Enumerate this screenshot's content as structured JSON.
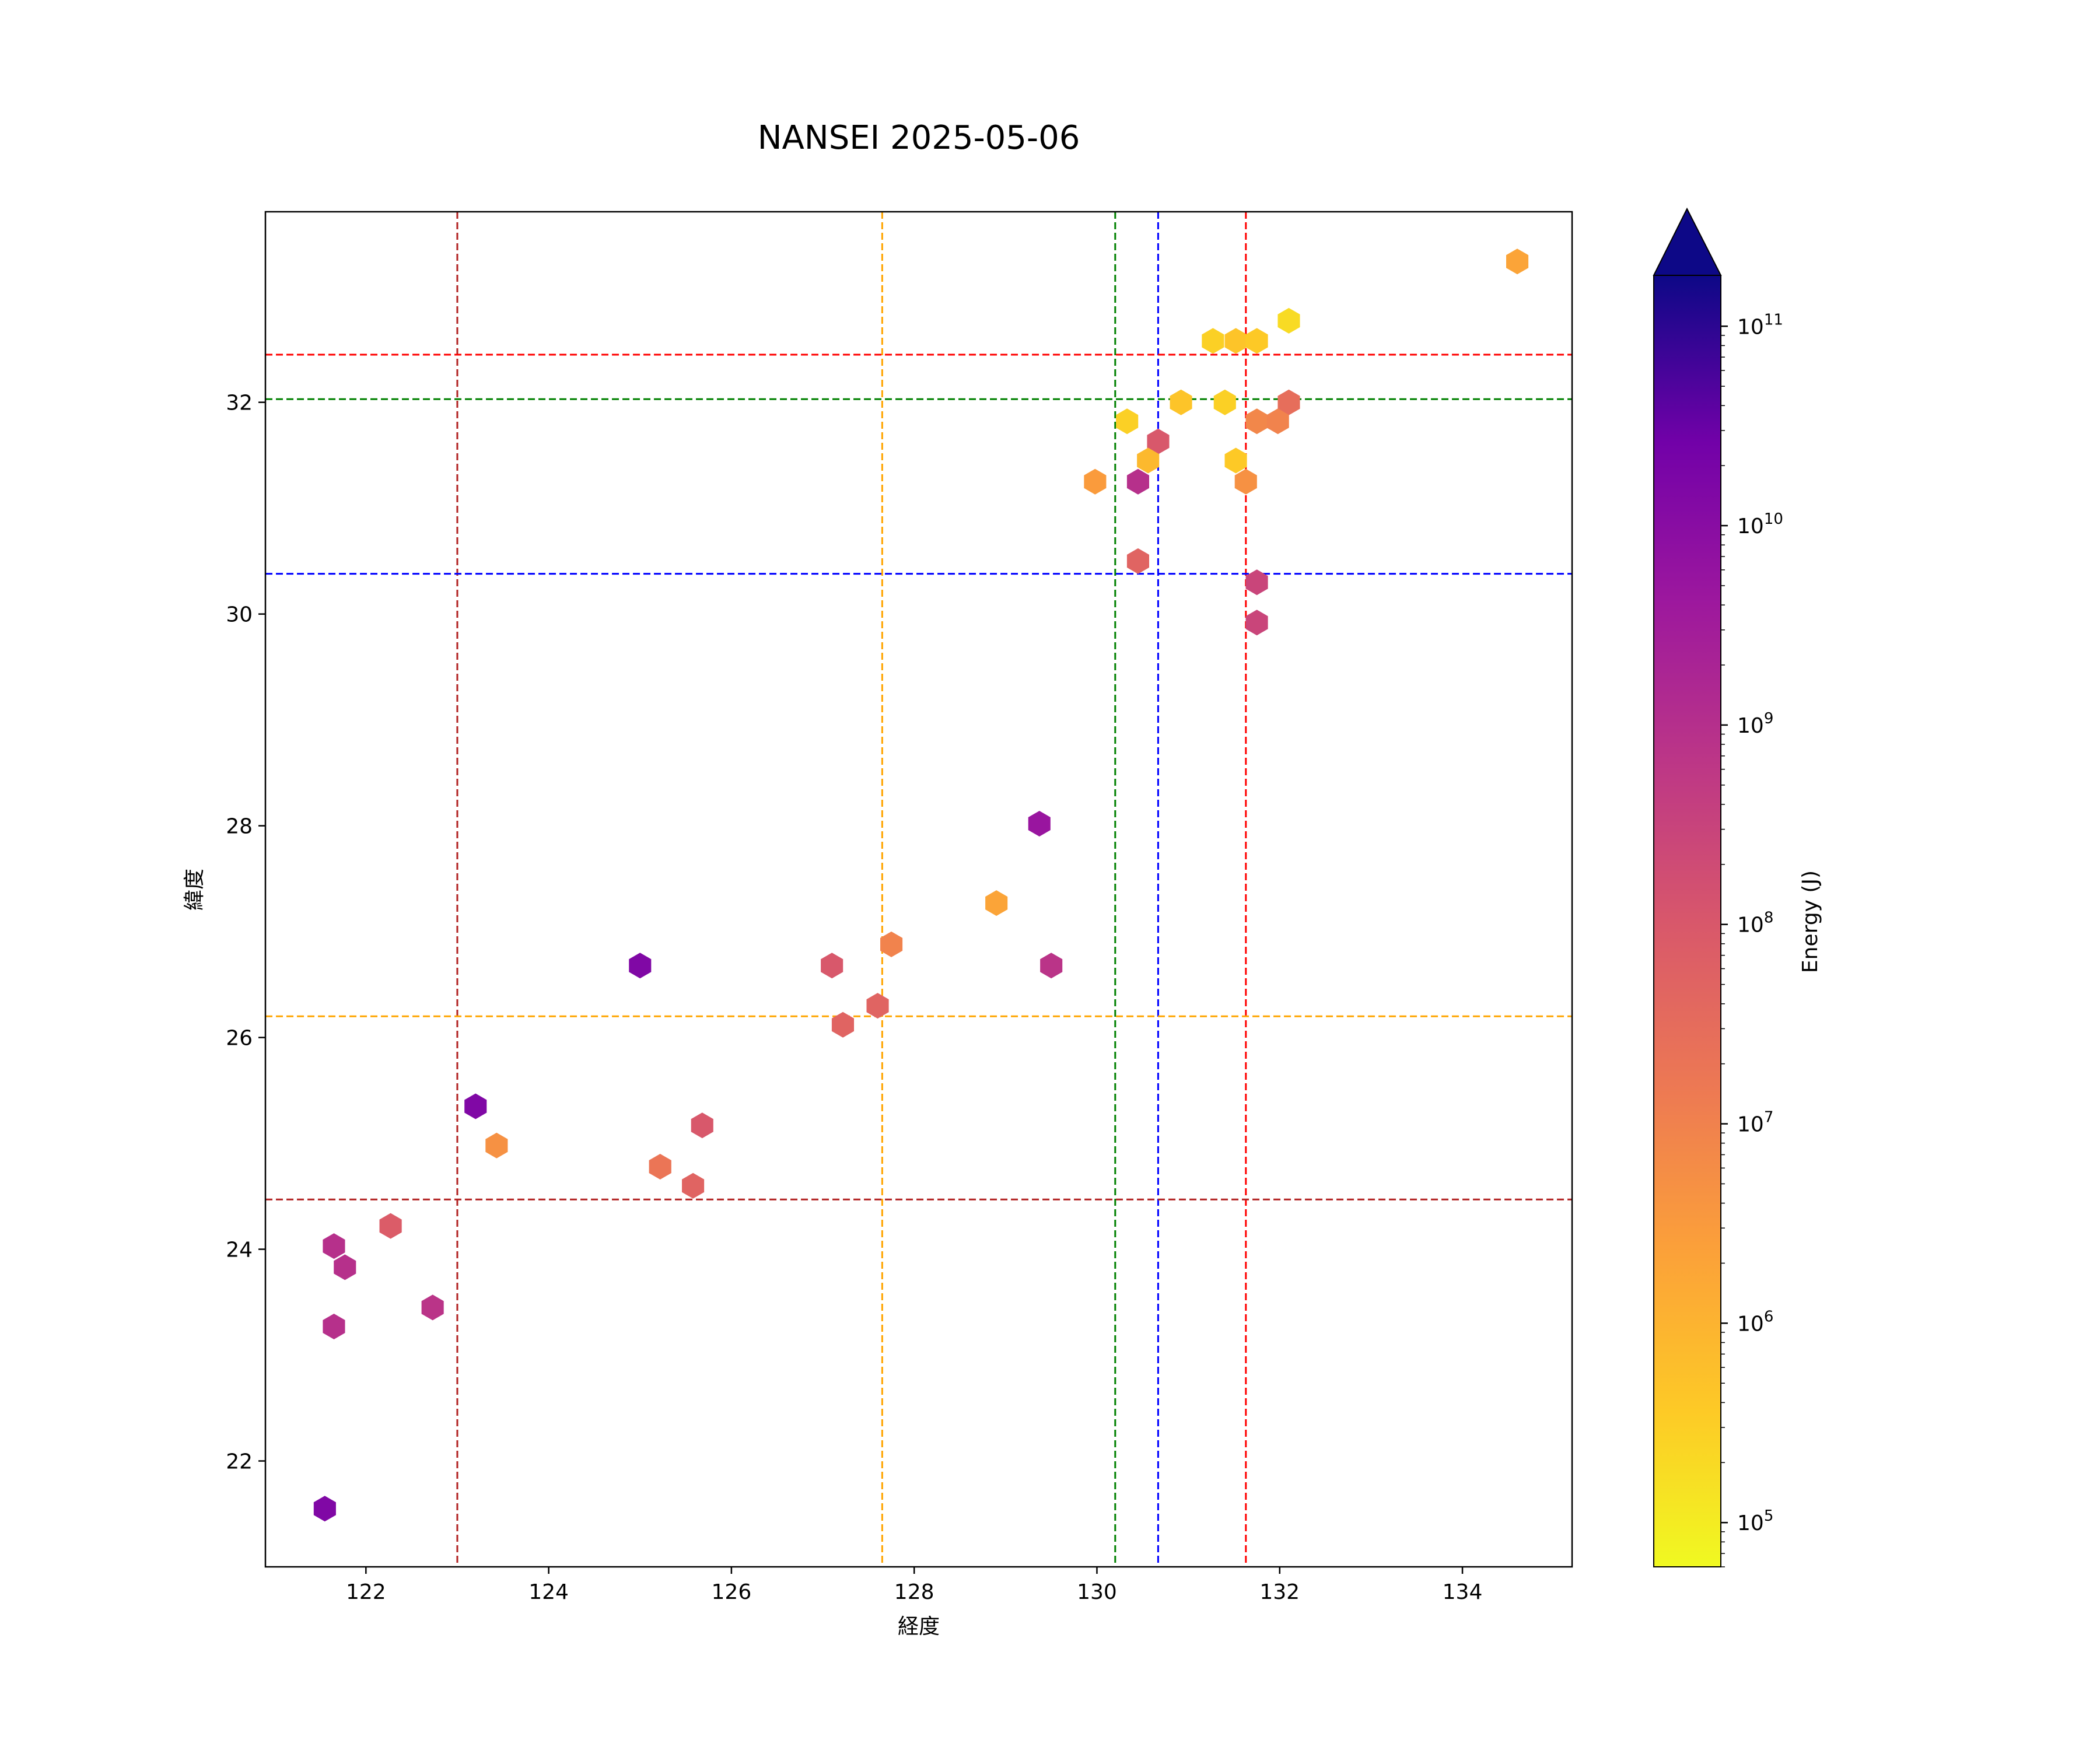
{
  "chart_data": {
    "type": "scatter",
    "title": "NANSEI 2025-05-06",
    "xlabel": "経度",
    "ylabel": "緯度",
    "xlim": [
      120.9,
      135.2
    ],
    "ylim": [
      21.0,
      33.8
    ],
    "grid": false,
    "x_ticks": [
      122,
      124,
      126,
      128,
      130,
      132,
      134
    ],
    "y_ticks": [
      22,
      24,
      26,
      28,
      30,
      32
    ],
    "colorbar": {
      "label": "Energy (J)",
      "scale": "log",
      "colormap": "plasma_r",
      "range": [
        60000,
        180000000000
      ],
      "extend": "max",
      "ticks": [
        100000,
        1000000,
        10000000,
        100000000,
        1000000000,
        10000000000,
        100000000000
      ],
      "tick_labels": [
        {
          "base": "10",
          "exp": "5"
        },
        {
          "base": "10",
          "exp": "6"
        },
        {
          "base": "10",
          "exp": "7"
        },
        {
          "base": "10",
          "exp": "8"
        },
        {
          "base": "10",
          "exp": "9"
        },
        {
          "base": "10",
          "exp": "10"
        },
        {
          "base": "10",
          "exp": "11"
        }
      ],
      "extend_color": "#0d0887"
    },
    "reference_lines": {
      "vertical": [
        {
          "x": 123.0,
          "color": "#b22222"
        },
        {
          "x": 127.65,
          "color": "#ffa500"
        },
        {
          "x": 130.2,
          "color": "#008000"
        },
        {
          "x": 130.67,
          "color": "#0000ff"
        },
        {
          "x": 131.63,
          "color": "#ff0000"
        }
      ],
      "horizontal": [
        {
          "y": 32.45,
          "color": "#ff0000"
        },
        {
          "y": 32.03,
          "color": "#008000"
        },
        {
          "y": 30.38,
          "color": "#0000ff"
        },
        {
          "y": 26.2,
          "color": "#ffa500"
        },
        {
          "y": 24.47,
          "color": "#b22222"
        }
      ]
    },
    "points": [
      {
        "x": 134.6,
        "y": 33.33,
        "energy": 2000000
      },
      {
        "x": 132.1,
        "y": 32.77,
        "energy": 200000
      },
      {
        "x": 131.27,
        "y": 32.58,
        "energy": 300000
      },
      {
        "x": 131.52,
        "y": 32.58,
        "energy": 500000
      },
      {
        "x": 131.75,
        "y": 32.58,
        "energy": 400000
      },
      {
        "x": 130.92,
        "y": 32.0,
        "energy": 500000
      },
      {
        "x": 131.4,
        "y": 32.0,
        "energy": 300000
      },
      {
        "x": 132.1,
        "y": 32.0,
        "energy": 30000000
      },
      {
        "x": 130.33,
        "y": 31.82,
        "energy": 300000
      },
      {
        "x": 131.75,
        "y": 31.82,
        "energy": 8000000
      },
      {
        "x": 131.98,
        "y": 31.82,
        "energy": 10000000
      },
      {
        "x": 130.67,
        "y": 31.63,
        "energy": 100000000
      },
      {
        "x": 130.56,
        "y": 31.45,
        "energy": 800000
      },
      {
        "x": 131.52,
        "y": 31.45,
        "energy": 400000
      },
      {
        "x": 129.98,
        "y": 31.25,
        "energy": 3000000
      },
      {
        "x": 130.45,
        "y": 31.25,
        "energy": 1000000000
      },
      {
        "x": 131.63,
        "y": 31.25,
        "energy": 5000000
      },
      {
        "x": 130.45,
        "y": 30.5,
        "energy": 50000000
      },
      {
        "x": 131.75,
        "y": 30.3,
        "energy": 300000000
      },
      {
        "x": 131.75,
        "y": 29.92,
        "energy": 300000000
      },
      {
        "x": 129.37,
        "y": 28.02,
        "energy": 5000000000
      },
      {
        "x": 128.9,
        "y": 27.27,
        "energy": 2000000
      },
      {
        "x": 127.1,
        "y": 26.68,
        "energy": 100000000
      },
      {
        "x": 127.75,
        "y": 26.88,
        "energy": 10000000
      },
      {
        "x": 125.0,
        "y": 26.68,
        "energy": 15000000000
      },
      {
        "x": 129.5,
        "y": 26.68,
        "energy": 800000000
      },
      {
        "x": 127.6,
        "y": 26.3,
        "energy": 50000000
      },
      {
        "x": 127.22,
        "y": 26.12,
        "energy": 50000000
      },
      {
        "x": 123.2,
        "y": 25.35,
        "energy": 15000000000
      },
      {
        "x": 123.43,
        "y": 24.98,
        "energy": 5000000
      },
      {
        "x": 125.68,
        "y": 25.17,
        "energy": 100000000
      },
      {
        "x": 125.22,
        "y": 24.78,
        "energy": 20000000
      },
      {
        "x": 125.58,
        "y": 24.6,
        "energy": 50000000
      },
      {
        "x": 122.27,
        "y": 24.22,
        "energy": 80000000
      },
      {
        "x": 121.65,
        "y": 24.03,
        "energy": 1000000000
      },
      {
        "x": 121.77,
        "y": 23.83,
        "energy": 1000000000
      },
      {
        "x": 122.73,
        "y": 23.45,
        "energy": 800000000
      },
      {
        "x": 121.65,
        "y": 23.27,
        "energy": 1000000000
      },
      {
        "x": 121.55,
        "y": 21.55,
        "energy": 15000000000
      }
    ]
  }
}
